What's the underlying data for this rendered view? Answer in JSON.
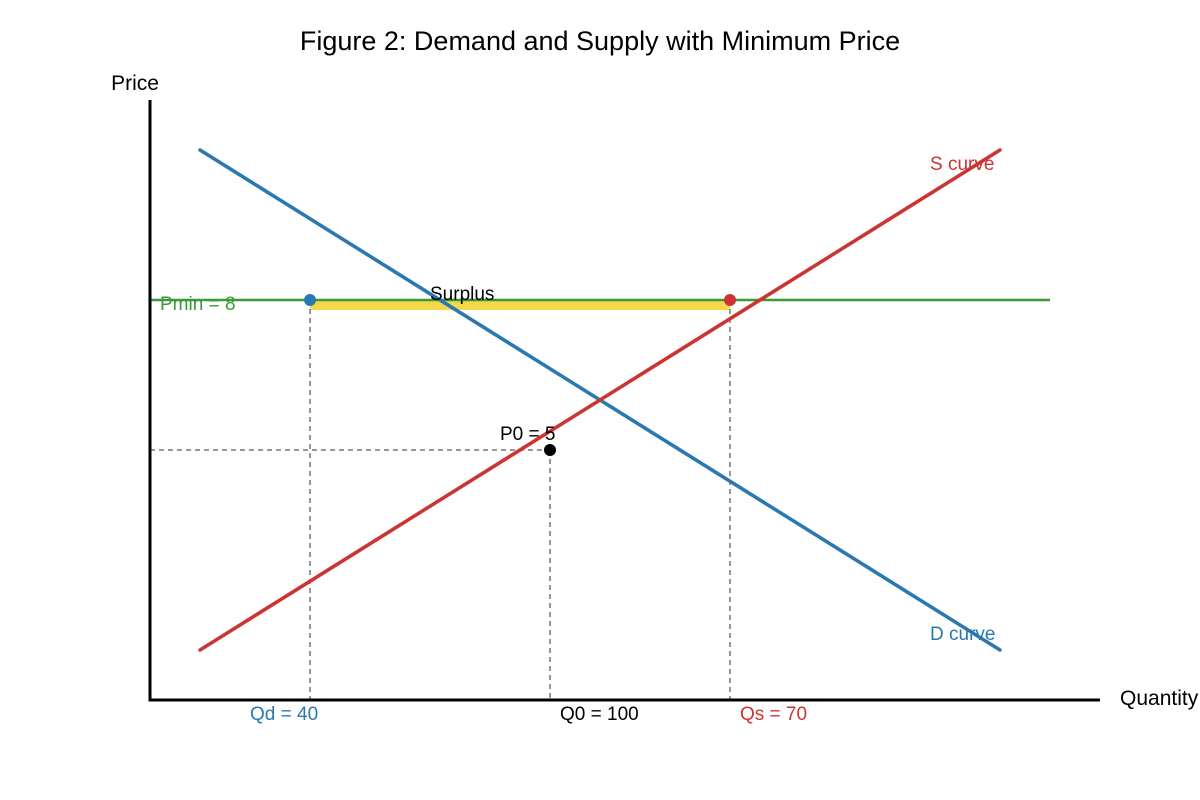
{
  "chart_data": {
    "type": "line",
    "title": "Figure 2: Demand and Supply with Minimum Price",
    "xlabel": "Quantity",
    "ylabel": "Price",
    "xlim": [
      0,
      190
    ],
    "ylim": [
      0,
      12
    ],
    "grid": false,
    "legend": "none",
    "series": [
      {
        "name": "D curve",
        "color": "#2a78b0",
        "points": [
          [
            10,
            11
          ],
          [
            170,
            1
          ]
        ]
      },
      {
        "name": "S curve",
        "color": "#cc3333",
        "points": [
          [
            10,
            1
          ],
          [
            170,
            11
          ]
        ]
      }
    ],
    "min_price": {
      "label": "Pmin = 8",
      "value": 8,
      "color": "#3a9a3a",
      "x_range": [
        0,
        180
      ]
    },
    "surplus": {
      "label": "Surplus",
      "x_range": [
        32,
        116
      ],
      "color": "#f5d84a"
    },
    "points": [
      {
        "x": 32,
        "y": 8,
        "color": "#2a78b0"
      },
      {
        "x": 116,
        "y": 8,
        "color": "#cc3333"
      },
      {
        "x": 80,
        "y": 5,
        "color": "#000000",
        "label": "P0 = 5"
      }
    ],
    "x_annotations": [
      {
        "x": 32,
        "label": "Qd = 40",
        "color": "#2a78b0"
      },
      {
        "x": 80,
        "label": "Q0 = 100",
        "color": "#000000"
      },
      {
        "x": 116,
        "label": "Qs = 70",
        "color": "#cc3333"
      }
    ]
  }
}
